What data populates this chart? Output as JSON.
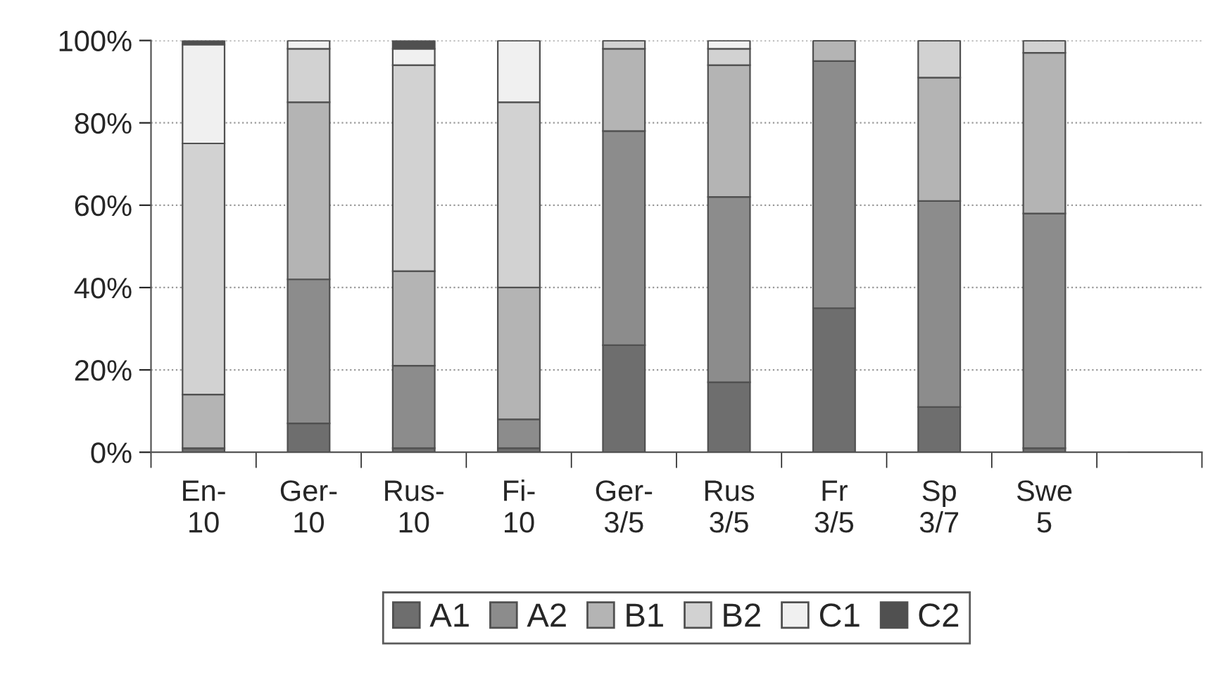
{
  "chart_data": {
    "type": "bar",
    "stacked": true,
    "categories": [
      "En-\n10",
      "Ger-\n10",
      "Rus-\n10",
      "Fi-\n10",
      "Ger-\n3/5",
      "Rus\n3/5",
      "Fr\n3/5",
      "Sp\n3/7",
      "Swe\n5",
      null
    ],
    "series": [
      {
        "name": "A1",
        "color": "#6e6e6e",
        "values": [
          1,
          7,
          1,
          1,
          26,
          17,
          35,
          11,
          1,
          null
        ]
      },
      {
        "name": "A2",
        "color": "#8c8c8c",
        "values": [
          0,
          35,
          20,
          7,
          52,
          45,
          60,
          50,
          57,
          null
        ]
      },
      {
        "name": "B1",
        "color": "#b4b4b4",
        "values": [
          13,
          43,
          23,
          32,
          20,
          32,
          5,
          30,
          39,
          null
        ]
      },
      {
        "name": "B2",
        "color": "#d2d2d2",
        "values": [
          61,
          13,
          50,
          45,
          2,
          4,
          0,
          9,
          3,
          null
        ]
      },
      {
        "name": "C1",
        "color": "#f0f0f0",
        "values": [
          24,
          2,
          4,
          15,
          0,
          2,
          0,
          0,
          0,
          null
        ]
      },
      {
        "name": "C2",
        "color": "#505050",
        "values": [
          1,
          0,
          2,
          0,
          0,
          0,
          0,
          0,
          0,
          null
        ]
      }
    ],
    "ylim": [
      0,
      100
    ],
    "yticks": [
      {
        "value": 0,
        "label": "0%"
      },
      {
        "value": 20,
        "label": "20%"
      },
      {
        "value": 40,
        "label": "40%"
      },
      {
        "value": 60,
        "label": "60%"
      },
      {
        "value": 80,
        "label": "80%"
      },
      {
        "value": 100,
        "label": "100%"
      }
    ],
    "grid": "y",
    "line_style": "dotted",
    "legend": "bottom"
  }
}
